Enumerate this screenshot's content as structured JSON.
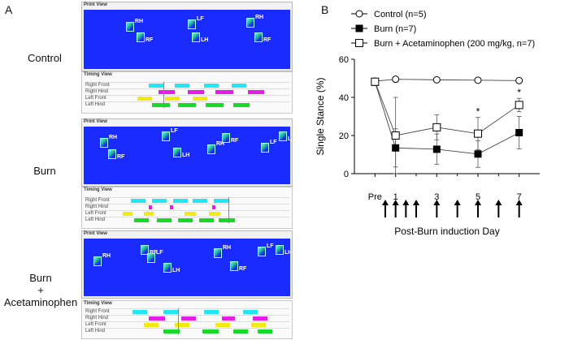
{
  "panel_a": {
    "letter": "A",
    "print_view_title": "Print View",
    "timing_view_title": "Timing View",
    "timing_rows": [
      "Right Front",
      "Right Hind",
      "Left Front",
      "Left Hind"
    ],
    "row_colors": [
      "#22e6f2",
      "#e81ce8",
      "#f2ea12",
      "#18d82a"
    ],
    "paw_labels": [
      "RH",
      "RF",
      "LF",
      "LH"
    ],
    "groups": [
      {
        "label": "Control"
      },
      {
        "label": "Burn"
      },
      {
        "label_lines": [
          "Burn",
          "+",
          "Acetaminophen"
        ]
      }
    ]
  },
  "panel_b": {
    "letter": "B",
    "xlabel_title": "Post-Burn induction Day",
    "arrow_glyph": "↑"
  },
  "chart_data": {
    "type": "line",
    "title": "",
    "xlabel": "Post-Burn induction Day",
    "ylabel": "Single Stance (%)",
    "ylim": [
      0,
      60
    ],
    "yticks": [
      0,
      20,
      40,
      60
    ],
    "x_tick_labels": [
      "Pre",
      "1",
      "3",
      "5",
      "7"
    ],
    "x_tick_positions": [
      0,
      1,
      3,
      5,
      7
    ],
    "x_domain": [
      -1,
      8
    ],
    "arrow_days": [
      0.5,
      1,
      1.5,
      2,
      3,
      4,
      5,
      6,
      7
    ],
    "legend_position": "top",
    "series": [
      {
        "name": "Control (n=5)",
        "marker": "open-circle",
        "x": [
          0,
          1,
          3,
          5,
          7
        ],
        "values": [
          48.5,
          49.5,
          49.2,
          49.0,
          48.8
        ],
        "err": [
          1.2,
          1.0,
          0.8,
          0.8,
          1.0
        ]
      },
      {
        "name": "Burn (n=7)",
        "marker": "filled-square",
        "x": [
          0,
          1,
          3,
          5,
          7
        ],
        "values": [
          48.0,
          13.5,
          12.8,
          10.3,
          21.5
        ],
        "err": [
          1.5,
          10.0,
          8.0,
          7.0,
          8.5
        ]
      },
      {
        "name": "Burn + Acetaminophen (200 mg/kg, n=7)",
        "marker": "open-square",
        "x": [
          0,
          1,
          3,
          5,
          7
        ],
        "values": [
          48.2,
          20.0,
          24.3,
          21.0,
          36.0
        ],
        "err": [
          1.5,
          20.0,
          6.5,
          8.5,
          3.5
        ]
      }
    ],
    "annotations": [
      {
        "text": "*",
        "x": 5,
        "y": 30
      },
      {
        "text": "*",
        "x": 7,
        "y": 40
      }
    ]
  }
}
